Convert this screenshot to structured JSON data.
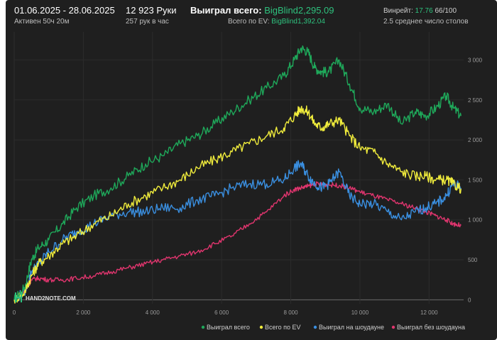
{
  "header": {
    "date_range": "01.06.2025 - 28.06.2025",
    "active_time": "Активен 50ч 20м",
    "hands_label": "12 923 Руки",
    "hands_per_hour": "257 рук в час",
    "won_total_label": "Выиграл всего:",
    "won_total_value": "BigBlind2,295.09",
    "ev_total_label": "Всего по EV:",
    "ev_total_value": "BigBlind1,392.04",
    "winrate_label": "Винрейт:",
    "winrate_value": "17.76",
    "winrate_count": "66/100",
    "avg_tables": "2.5 среднее число столов"
  },
  "logo": {
    "text": "HAND2NOTE.COM"
  },
  "colors": {
    "won_total": "#1fa85a",
    "ev_total": "#f0ec3c",
    "showdown": "#3a8fe0",
    "non_showdown": "#e0356e",
    "grid": "#2c2c2c",
    "zero_line": "#6a6a6a"
  },
  "chart_data": {
    "type": "line",
    "title": "",
    "xlabel": "",
    "ylabel": "",
    "xlim": [
      0,
      13000
    ],
    "ylim": [
      -50,
      3350
    ],
    "x_ticks": [
      0,
      2000,
      4000,
      6000,
      8000,
      10000,
      12000
    ],
    "x_tick_labels": [
      "0",
      "2 000",
      "4 000",
      "6 000",
      "8 000",
      "10 000",
      "12 000"
    ],
    "y_ticks": [
      0,
      500,
      1000,
      1500,
      2000,
      2500,
      3000
    ],
    "y_tick_labels": [
      "0",
      "500",
      "1 000",
      "1 500",
      "2 000",
      "2 500",
      "3 000"
    ],
    "grid": true,
    "legend_position": "bottom-right",
    "x": [
      0,
      300,
      500,
      700,
      1000,
      1400,
      1800,
      2300,
      2800,
      3300,
      3800,
      4300,
      4800,
      5300,
      5800,
      6300,
      6800,
      7300,
      7800,
      8100,
      8300,
      8500,
      8700,
      8900,
      9100,
      9400,
      9700,
      10000,
      10400,
      10800,
      11200,
      11600,
      11900,
      12200,
      12500,
      12700,
      12923
    ],
    "series": [
      {
        "name": "Выиграл всего",
        "color_key": "won_total",
        "values": [
          0,
          150,
          500,
          650,
          750,
          950,
          1150,
          1300,
          1400,
          1550,
          1700,
          1800,
          1950,
          2050,
          2200,
          2350,
          2500,
          2650,
          2800,
          3000,
          3150,
          3100,
          2900,
          2850,
          2850,
          3000,
          2700,
          2400,
          2350,
          2450,
          2200,
          2350,
          2300,
          2400,
          2550,
          2400,
          2300
        ]
      },
      {
        "name": "Всего по EV",
        "color_key": "ev_total",
        "values": [
          0,
          100,
          300,
          450,
          550,
          700,
          800,
          950,
          1050,
          1200,
          1300,
          1400,
          1500,
          1650,
          1750,
          1850,
          1950,
          2050,
          2150,
          2300,
          2400,
          2350,
          2200,
          2150,
          2200,
          2250,
          2050,
          1900,
          1850,
          1700,
          1600,
          1550,
          1550,
          1500,
          1500,
          1450,
          1390
        ]
      },
      {
        "name": "Выиграл на шоудауне",
        "color_key": "showdown",
        "values": [
          0,
          100,
          350,
          450,
          600,
          750,
          850,
          950,
          1050,
          1100,
          1100,
          1150,
          1150,
          1250,
          1300,
          1400,
          1450,
          1450,
          1500,
          1650,
          1700,
          1550,
          1450,
          1400,
          1450,
          1600,
          1300,
          1200,
          1200,
          1100,
          1000,
          1100,
          1150,
          1200,
          1300,
          1450,
          1400
        ]
      },
      {
        "name": "Выиграл без шоудауна",
        "color_key": "non_showdown",
        "values": [
          0,
          100,
          250,
          270,
          250,
          250,
          270,
          300,
          350,
          400,
          450,
          500,
          550,
          600,
          700,
          800,
          950,
          1100,
          1300,
          1380,
          1400,
          1420,
          1450,
          1440,
          1440,
          1430,
          1400,
          1350,
          1300,
          1250,
          1200,
          1150,
          1100,
          1050,
          1000,
          950,
          930
        ]
      }
    ]
  }
}
